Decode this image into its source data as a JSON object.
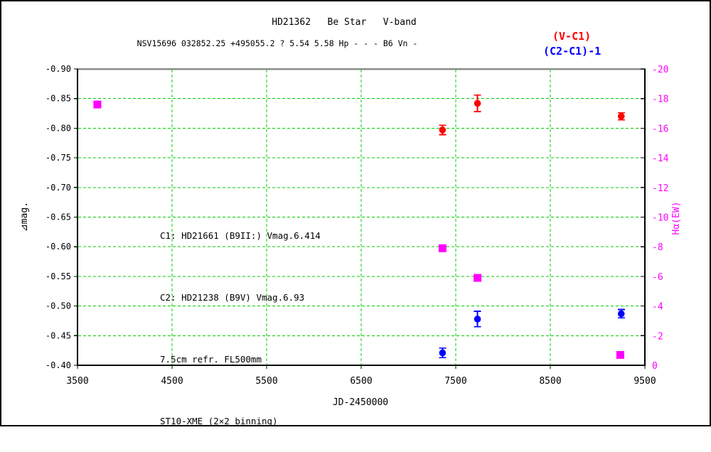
{
  "header": {
    "title": "HD21362   Be Star   V-band",
    "subtitle": "NSV15696 032852.25 +495055.2 ? 5.54 5.58 Hp - - - B6 Vn -"
  },
  "legend": [
    {
      "label": "(V-C1)",
      "color": "#ff0000"
    },
    {
      "label": "(C2-C1)-1",
      "color": "#0000ff"
    }
  ],
  "annotations": [
    "C1: HD21661 (B9II:) Vmag.6.414",
    "C2: HD21238 (B9V) Vmag.6.93",
    "7.5cm refr. FL500mm",
    "ST10-XME (2×2 binning)"
  ],
  "chart_data": {
    "type": "scatter",
    "title": "HD21362 Be Star V-band",
    "xlabel": "JD-2450000",
    "ylabel_left": "⊿mag.",
    "ylabel_right": "Hα(EW)",
    "xlim": [
      3500,
      9500
    ],
    "xticks": [
      3500,
      4500,
      5500,
      6500,
      7500,
      8500,
      9500
    ],
    "ylim_left": [
      -0.9,
      -0.4
    ],
    "yticks_left": [
      "-0.90",
      "-0.85",
      "-0.80",
      "-0.75",
      "-0.70",
      "-0.65",
      "-0.60",
      "-0.55",
      "-0.50",
      "-0.45",
      "-0.40"
    ],
    "ylim_right": [
      -20,
      0
    ],
    "yticks_right": [
      "-20",
      "-18",
      "-16",
      "-14",
      "-12",
      "-10",
      "-8",
      "-6",
      "-4",
      "-2",
      "0"
    ],
    "grid": {
      "on": true,
      "color": "#00cc00",
      "style": "dashed"
    },
    "legend_position": "top-right",
    "axis_color_right": "#ff00ff",
    "series": [
      {
        "name": "(V-C1)",
        "axis": "left",
        "color": "#ff0000",
        "marker": "circle",
        "points": [
          {
            "x": 7360,
            "y": -0.797,
            "err": 0.008
          },
          {
            "x": 7730,
            "y": -0.842,
            "err": 0.014
          },
          {
            "x": 9250,
            "y": -0.82,
            "err": 0.006
          }
        ]
      },
      {
        "name": "(C2-C1)-1",
        "axis": "left",
        "color": "#0000ff",
        "marker": "circle",
        "points": [
          {
            "x": 7360,
            "y": -0.421,
            "err": 0.008
          },
          {
            "x": 7730,
            "y": -0.478,
            "err": 0.013
          },
          {
            "x": 9250,
            "y": -0.487,
            "err": 0.007
          }
        ]
      },
      {
        "name": "Hα(EW)",
        "axis": "right",
        "color": "#ff00ff",
        "marker": "square",
        "points": [
          {
            "x": 3710,
            "y": -17.6
          },
          {
            "x": 7360,
            "y": -7.9
          },
          {
            "x": 7730,
            "y": -5.9
          },
          {
            "x": 9240,
            "y": -0.7
          }
        ]
      }
    ]
  }
}
